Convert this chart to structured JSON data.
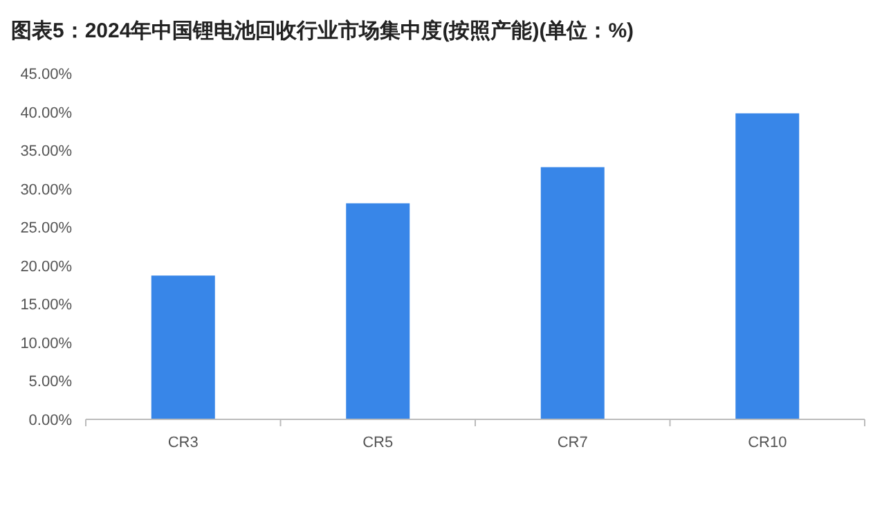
{
  "chart_data": {
    "type": "bar",
    "title": "图表5：2024年中国锂电池回收行业市场集中度(按照产能)(单位：%)",
    "categories": [
      "CR3",
      "CR5",
      "CR7",
      "CR10"
    ],
    "values": [
      18.7,
      28.1,
      32.8,
      39.8
    ],
    "color": "#3886e8",
    "ylim": [
      0,
      45
    ],
    "yticks": [
      {
        "value": 0,
        "label": "0.00%"
      },
      {
        "value": 5,
        "label": "5.00%"
      },
      {
        "value": 10,
        "label": "10.00%"
      },
      {
        "value": 15,
        "label": "15.00%"
      },
      {
        "value": 20,
        "label": "20.00%"
      },
      {
        "value": 25,
        "label": "25.00%"
      },
      {
        "value": 30,
        "label": "30.00%"
      },
      {
        "value": 35,
        "label": "35.00%"
      },
      {
        "value": 40,
        "label": "40.00%"
      },
      {
        "value": 45,
        "label": "45.00%"
      }
    ],
    "grid": false
  }
}
